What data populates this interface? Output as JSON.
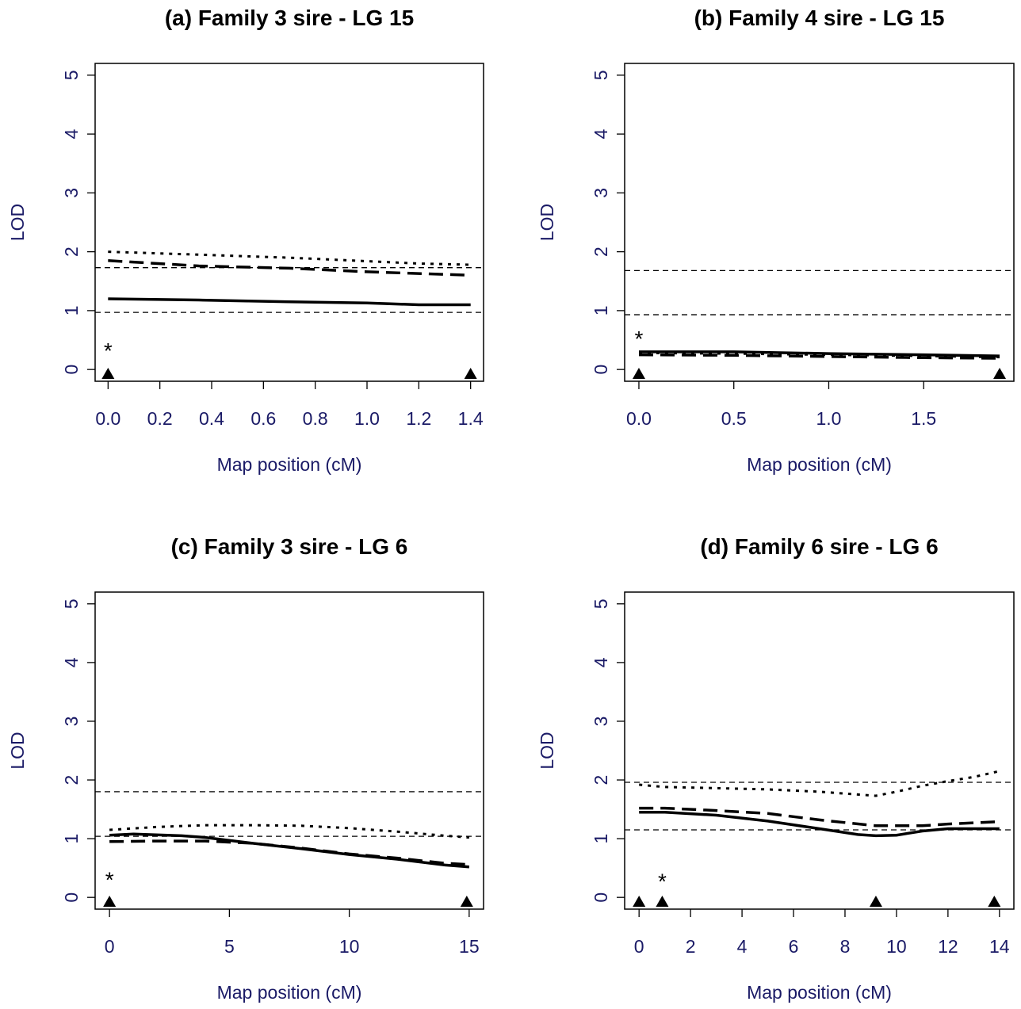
{
  "chart_data": [
    {
      "type": "line",
      "title": "(a) Family 3 sire - LG 15",
      "xlabel": "Map position (cM)",
      "ylabel": "LOD",
      "xlim": [
        -0.05,
        1.45
      ],
      "ylim": [
        -0.2,
        5.2
      ],
      "x_ticks": [
        "0.0",
        "0.2",
        "0.4",
        "0.6",
        "0.8",
        "1.0",
        "1.2",
        "1.4"
      ],
      "y_ticks": [
        "0",
        "1",
        "2",
        "3",
        "4",
        "5"
      ],
      "thresholds": [
        0.97,
        1.73
      ],
      "series": [
        {
          "style": "solid",
          "x": [
            0,
            0.35,
            0.7,
            1.0,
            1.2,
            1.4
          ],
          "y": [
            1.2,
            1.18,
            1.15,
            1.13,
            1.1,
            1.1
          ]
        },
        {
          "style": "dashed",
          "x": [
            0,
            0.35,
            0.7,
            1.0,
            1.2,
            1.4
          ],
          "y": [
            1.85,
            1.76,
            1.72,
            1.66,
            1.63,
            1.6
          ]
        },
        {
          "style": "dotted",
          "x": [
            0,
            0.35,
            0.7,
            1.0,
            1.2,
            1.4
          ],
          "y": [
            2.0,
            1.95,
            1.9,
            1.84,
            1.8,
            1.78
          ]
        }
      ],
      "markers_x": [
        0,
        1.4
      ],
      "asterisk": {
        "label": "*",
        "x": 0,
        "y": 0.38
      }
    },
    {
      "type": "line",
      "title": "(b) Family 4 sire - LG 15",
      "xlabel": "Map position (cM)",
      "ylabel": "LOD",
      "xlim": [
        -0.075,
        1.975
      ],
      "ylim": [
        -0.2,
        5.2
      ],
      "x_ticks": [
        "0.0",
        "0.5",
        "1.0",
        "1.5"
      ],
      "x_tick_values": [
        0,
        0.5,
        1.0,
        1.5
      ],
      "y_ticks": [
        "0",
        "1",
        "2",
        "3",
        "4",
        "5"
      ],
      "thresholds": [
        0.93,
        1.68
      ],
      "series": [
        {
          "style": "solid",
          "x": [
            0,
            0.5,
            1.0,
            1.5,
            1.9
          ],
          "y": [
            0.3,
            0.3,
            0.27,
            0.25,
            0.23
          ]
        },
        {
          "style": "dashed",
          "x": [
            0,
            0.5,
            1.0,
            1.5,
            1.9
          ],
          "y": [
            0.25,
            0.24,
            0.22,
            0.2,
            0.19
          ]
        },
        {
          "style": "dotted",
          "x": [
            0,
            0.5,
            1.0,
            1.5,
            1.9
          ],
          "y": [
            0.28,
            0.27,
            0.25,
            0.23,
            0.21
          ]
        }
      ],
      "markers_x": [
        0,
        1.9
      ],
      "asterisk": {
        "label": "*",
        "x": 0,
        "y": 0.58
      }
    },
    {
      "type": "line",
      "title": "(c) Family 3 sire - LG 6",
      "xlabel": "Map position (cM)",
      "ylabel": "LOD",
      "xlim": [
        -0.6,
        15.6
      ],
      "ylim": [
        -0.2,
        5.2
      ],
      "x_ticks": [
        "0",
        "5",
        "10",
        "15"
      ],
      "x_tick_values": [
        0,
        5,
        10,
        15
      ],
      "y_ticks": [
        "0",
        "1",
        "2",
        "3",
        "4",
        "5"
      ],
      "thresholds": [
        1.04,
        1.8
      ],
      "series": [
        {
          "style": "solid",
          "x": [
            0,
            1,
            3,
            4,
            6,
            8,
            10,
            12,
            14,
            15
          ],
          "y": [
            1.06,
            1.08,
            1.05,
            1.02,
            0.92,
            0.83,
            0.73,
            0.65,
            0.55,
            0.52
          ]
        },
        {
          "style": "dashed",
          "x": [
            0,
            2,
            4,
            6,
            8,
            10,
            12,
            14,
            15
          ],
          "y": [
            0.95,
            0.96,
            0.96,
            0.92,
            0.84,
            0.74,
            0.67,
            0.58,
            0.56
          ]
        },
        {
          "style": "dotted",
          "x": [
            0,
            2,
            4,
            6,
            8,
            10,
            12,
            14,
            15
          ],
          "y": [
            1.15,
            1.2,
            1.23,
            1.23,
            1.22,
            1.18,
            1.12,
            1.05,
            1.02
          ]
        }
      ],
      "markers_x": [
        0,
        14.9
      ],
      "asterisk": {
        "label": "*",
        "x": 0,
        "y": 0.36
      }
    },
    {
      "type": "line",
      "title": "(d) Family 6 sire - LG 6",
      "xlabel": "Map position (cM)",
      "ylabel": "LOD",
      "xlim": [
        -0.56,
        14.56
      ],
      "ylim": [
        -0.2,
        5.2
      ],
      "x_ticks": [
        "0",
        "2",
        "4",
        "6",
        "8",
        "10",
        "12",
        "14"
      ],
      "x_tick_values": [
        0,
        2,
        4,
        6,
        8,
        10,
        12,
        14
      ],
      "y_ticks": [
        "0",
        "1",
        "2",
        "3",
        "4",
        "5"
      ],
      "thresholds": [
        1.15,
        1.96
      ],
      "series": [
        {
          "style": "solid",
          "x": [
            0,
            1,
            3,
            5,
            7,
            8.5,
            9.2,
            10,
            11,
            12,
            14
          ],
          "y": [
            1.45,
            1.45,
            1.4,
            1.3,
            1.17,
            1.07,
            1.05,
            1.06,
            1.13,
            1.17,
            1.17
          ]
        },
        {
          "style": "dashed",
          "x": [
            0,
            1,
            3,
            5,
            7,
            9.2,
            11,
            12,
            14
          ],
          "y": [
            1.52,
            1.52,
            1.48,
            1.43,
            1.32,
            1.22,
            1.22,
            1.25,
            1.29
          ]
        },
        {
          "style": "dotted",
          "x": [
            0,
            1,
            3,
            5,
            7,
            9.2,
            10,
            11,
            12,
            13,
            14
          ],
          "y": [
            1.92,
            1.88,
            1.86,
            1.84,
            1.8,
            1.73,
            1.8,
            1.9,
            1.98,
            2.05,
            2.15
          ]
        }
      ],
      "markers_x": [
        0,
        0.9,
        9.2,
        13.8
      ],
      "asterisk": {
        "label": "*",
        "x": 0.9,
        "y": 0.33
      }
    }
  ]
}
